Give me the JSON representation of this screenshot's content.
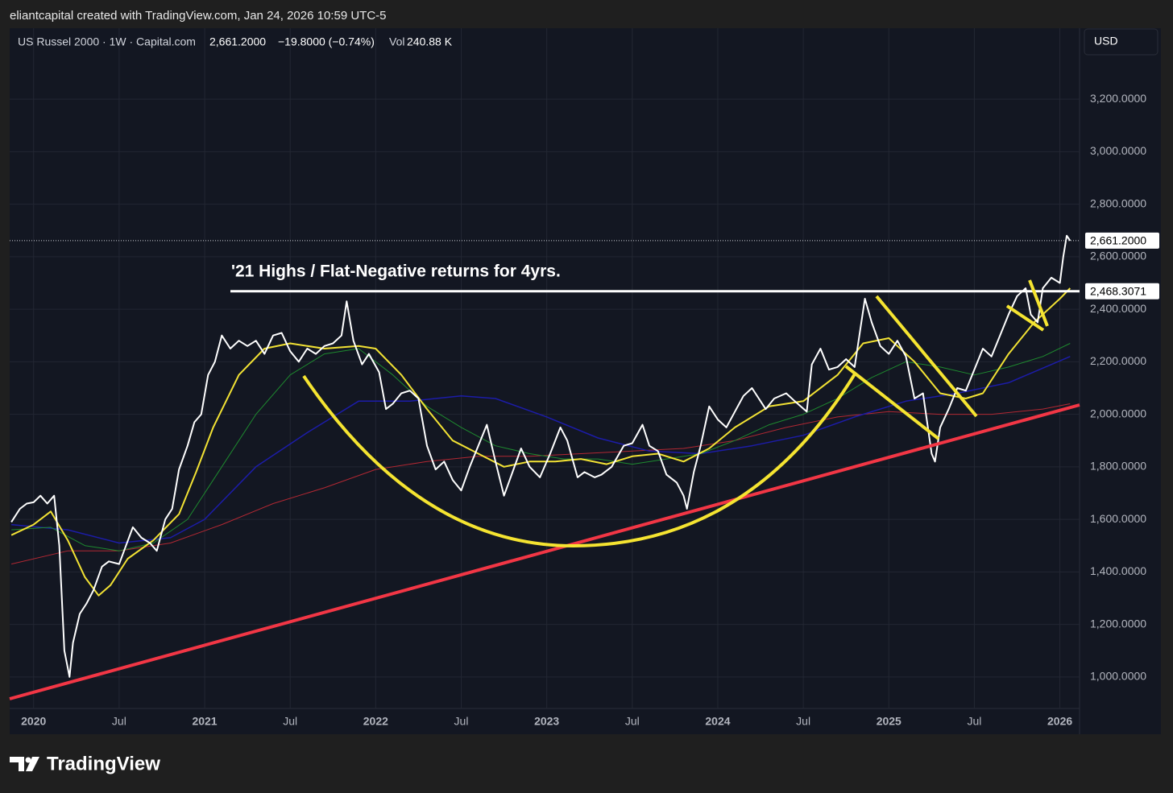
{
  "header": {
    "credit": "eliantcapital created with TradingView.com, Jan 24, 2026 10:59 UTC-5"
  },
  "legend": {
    "symbol": "US Russel 2000 · 1W · Capital.com",
    "last": "2,661.2000",
    "change": "−19.8000 (−0.74%)",
    "vol_label": "Vol",
    "vol_value": "240.88 K"
  },
  "currency_button": "USD",
  "brand": "TradingView",
  "chart_data": {
    "type": "line",
    "annotation": "'21 Highs / Flat-Negative returns for 4yrs.",
    "xlim": [
      2019.86,
      2026.115
    ],
    "ylim": [
      880,
      3470
    ],
    "grid": true,
    "xticks": [
      {
        "value": 2020,
        "label": "2020"
      },
      {
        "value": 2020.5,
        "label": "Jul"
      },
      {
        "value": 2021,
        "label": "2021"
      },
      {
        "value": 2021.5,
        "label": "Jul"
      },
      {
        "value": 2022,
        "label": "2022"
      },
      {
        "value": 2022.5,
        "label": "Jul"
      },
      {
        "value": 2023,
        "label": "2023"
      },
      {
        "value": 2023.5,
        "label": "Jul"
      },
      {
        "value": 2024,
        "label": "2024"
      },
      {
        "value": 2024.5,
        "label": "Jul"
      },
      {
        "value": 2025,
        "label": "2025"
      },
      {
        "value": 2025.5,
        "label": "Jul"
      },
      {
        "value": 2026,
        "label": "2026"
      }
    ],
    "yticks": [
      {
        "value": 1000,
        "label": "1,000.0000"
      },
      {
        "value": 1200,
        "label": "1,200.0000"
      },
      {
        "value": 1400,
        "label": "1,400.0000"
      },
      {
        "value": 1600,
        "label": "1,600.0000"
      },
      {
        "value": 1800,
        "label": "1,800.0000"
      },
      {
        "value": 2000,
        "label": "2,000.0000"
      },
      {
        "value": 2200,
        "label": "2,200.0000"
      },
      {
        "value": 2400,
        "label": "2,400.0000"
      },
      {
        "value": 2600,
        "label": "2,600.0000"
      },
      {
        "value": 2800,
        "label": "2,800.0000"
      },
      {
        "value": 3000,
        "label": "3,000.0000"
      },
      {
        "value": 3200,
        "label": "3,200.0000"
      }
    ],
    "price_tags": [
      {
        "value": 2661.2,
        "label": "2,661.2000"
      },
      {
        "value": 2468.3071,
        "label": "2,468.3071"
      }
    ],
    "series": [
      {
        "color": "#b22833",
        "width": 1,
        "x": [
          2019.87,
          2020.2,
          2020.5,
          2020.8,
          2021.1,
          2021.4,
          2021.7,
          2022.0,
          2022.3,
          2022.6,
          2022.9,
          2023.2,
          2023.5,
          2023.8,
          2024.1,
          2024.4,
          2024.7,
          2025.0,
          2025.3,
          2025.6,
          2025.9,
          2026.06
        ],
        "values": [
          1430,
          1480,
          1480,
          1510,
          1580,
          1660,
          1720,
          1790,
          1820,
          1840,
          1840,
          1850,
          1860,
          1870,
          1900,
          1950,
          1990,
          2010,
          2000,
          2000,
          2020,
          2040
        ]
      },
      {
        "color": "#1c1ca8",
        "width": 1.5,
        "x": [
          2019.87,
          2020.2,
          2020.5,
          2020.8,
          2021.0,
          2021.3,
          2021.6,
          2021.9,
          2022.2,
          2022.5,
          2022.7,
          2023.0,
          2023.3,
          2023.6,
          2023.9,
          2024.2,
          2024.5,
          2024.8,
          2025.1,
          2025.4,
          2025.7,
          2026.06
        ],
        "values": [
          1580,
          1560,
          1510,
          1530,
          1600,
          1800,
          1930,
          2050,
          2050,
          2070,
          2060,
          1990,
          1910,
          1860,
          1850,
          1880,
          1920,
          1990,
          2050,
          2080,
          2120,
          2220
        ]
      },
      {
        "color": "#1e8a2f",
        "width": 1,
        "x": [
          2019.87,
          2020.1,
          2020.3,
          2020.5,
          2020.7,
          2020.9,
          2021.1,
          2021.3,
          2021.5,
          2021.7,
          2021.9,
          2022.1,
          2022.3,
          2022.5,
          2022.7,
          2022.9,
          2023.1,
          2023.3,
          2023.5,
          2023.7,
          2023.9,
          2024.1,
          2024.3,
          2024.5,
          2024.7,
          2024.9,
          2025.1,
          2025.3,
          2025.5,
          2025.7,
          2025.9,
          2026.06
        ],
        "values": [
          1560,
          1570,
          1500,
          1480,
          1510,
          1600,
          1800,
          2000,
          2150,
          2230,
          2250,
          2150,
          2030,
          1950,
          1880,
          1850,
          1830,
          1830,
          1810,
          1830,
          1850,
          1900,
          1960,
          2000,
          2060,
          2140,
          2200,
          2180,
          2150,
          2180,
          2220,
          2270
        ]
      },
      {
        "color": "#f2e234",
        "width": 2,
        "x": [
          2019.87,
          2020.0,
          2020.1,
          2020.2,
          2020.3,
          2020.38,
          2020.45,
          2020.55,
          2020.7,
          2020.85,
          2020.95,
          2021.05,
          2021.2,
          2021.35,
          2021.5,
          2021.7,
          2021.9,
          2022.0,
          2022.15,
          2022.3,
          2022.45,
          2022.6,
          2022.75,
          2022.9,
          2023.05,
          2023.2,
          2023.35,
          2023.5,
          2023.65,
          2023.8,
          2023.95,
          2024.1,
          2024.3,
          2024.5,
          2024.7,
          2024.85,
          2025.0,
          2025.15,
          2025.3,
          2025.45,
          2025.55,
          2025.7,
          2025.85,
          2026.0,
          2026.06
        ],
        "values": [
          1540,
          1580,
          1630,
          1520,
          1380,
          1310,
          1350,
          1450,
          1520,
          1620,
          1780,
          1950,
          2150,
          2250,
          2270,
          2250,
          2260,
          2250,
          2150,
          2020,
          1900,
          1850,
          1800,
          1820,
          1820,
          1830,
          1810,
          1840,
          1850,
          1820,
          1870,
          1950,
          2030,
          2050,
          2150,
          2270,
          2290,
          2200,
          2080,
          2060,
          2080,
          2230,
          2350,
          2440,
          2480
        ]
      },
      {
        "color": "#ffffff",
        "width": 2,
        "x": [
          2019.87,
          2019.92,
          2019.96,
          2020.0,
          2020.04,
          2020.08,
          2020.12,
          2020.15,
          2020.18,
          2020.21,
          2020.23,
          2020.27,
          2020.31,
          2020.35,
          2020.4,
          2020.44,
          2020.5,
          2020.54,
          2020.58,
          2020.63,
          2020.68,
          2020.72,
          2020.77,
          2020.81,
          2020.85,
          2020.9,
          2020.94,
          2020.98,
          2021.02,
          2021.06,
          2021.1,
          2021.15,
          2021.2,
          2021.25,
          2021.3,
          2021.35,
          2021.4,
          2021.45,
          2021.5,
          2021.55,
          2021.6,
          2021.65,
          2021.7,
          2021.75,
          2021.8,
          2021.83,
          2021.87,
          2021.92,
          2021.96,
          2022.02,
          2022.06,
          2022.1,
          2022.15,
          2022.2,
          2022.25,
          2022.3,
          2022.35,
          2022.4,
          2022.45,
          2022.5,
          2022.55,
          2022.6,
          2022.65,
          2022.7,
          2022.75,
          2022.8,
          2022.85,
          2022.9,
          2022.96,
          2023.02,
          2023.08,
          2023.12,
          2023.18,
          2023.22,
          2023.28,
          2023.32,
          2023.38,
          2023.45,
          2023.5,
          2023.56,
          2023.6,
          2023.65,
          2023.7,
          2023.76,
          2023.8,
          2023.82,
          2023.86,
          2023.9,
          2023.95,
          2024.0,
          2024.05,
          2024.1,
          2024.15,
          2024.2,
          2024.28,
          2024.33,
          2024.4,
          2024.45,
          2024.52,
          2024.55,
          2024.6,
          2024.65,
          2024.7,
          2024.75,
          2024.8,
          2024.86,
          2024.9,
          2024.95,
          2025.0,
          2025.05,
          2025.1,
          2025.15,
          2025.2,
          2025.25,
          2025.27,
          2025.3,
          2025.35,
          2025.4,
          2025.45,
          2025.5,
          2025.55,
          2025.6,
          2025.65,
          2025.7,
          2025.75,
          2025.8,
          2025.83,
          2025.87,
          2025.9,
          2025.95,
          2026.0,
          2026.02,
          2026.04,
          2026.06
        ],
        "values": [
          1590,
          1640,
          1660,
          1665,
          1690,
          1660,
          1690,
          1500,
          1100,
          1000,
          1130,
          1240,
          1280,
          1330,
          1420,
          1440,
          1430,
          1500,
          1570,
          1530,
          1510,
          1480,
          1600,
          1640,
          1790,
          1880,
          1970,
          2000,
          2150,
          2200,
          2300,
          2250,
          2280,
          2260,
          2280,
          2230,
          2300,
          2310,
          2240,
          2200,
          2250,
          2230,
          2260,
          2270,
          2300,
          2430,
          2280,
          2190,
          2230,
          2160,
          2020,
          2040,
          2080,
          2090,
          2060,
          1880,
          1790,
          1820,
          1750,
          1710,
          1800,
          1880,
          1960,
          1820,
          1690,
          1780,
          1870,
          1800,
          1760,
          1850,
          1950,
          1900,
          1760,
          1780,
          1760,
          1770,
          1800,
          1880,
          1890,
          1960,
          1880,
          1860,
          1770,
          1740,
          1690,
          1640,
          1780,
          1880,
          2030,
          1980,
          1950,
          2010,
          2070,
          2100,
          2020,
          2060,
          2080,
          2050,
          2010,
          2190,
          2250,
          2170,
          2180,
          2210,
          2180,
          2440,
          2350,
          2260,
          2230,
          2280,
          2220,
          2060,
          2080,
          1850,
          1820,
          1950,
          2020,
          2100,
          2090,
          2170,
          2250,
          2220,
          2300,
          2380,
          2450,
          2480,
          2380,
          2350,
          2480,
          2520,
          2500,
          2600,
          2680,
          2661.2
        ]
      }
    ]
  }
}
